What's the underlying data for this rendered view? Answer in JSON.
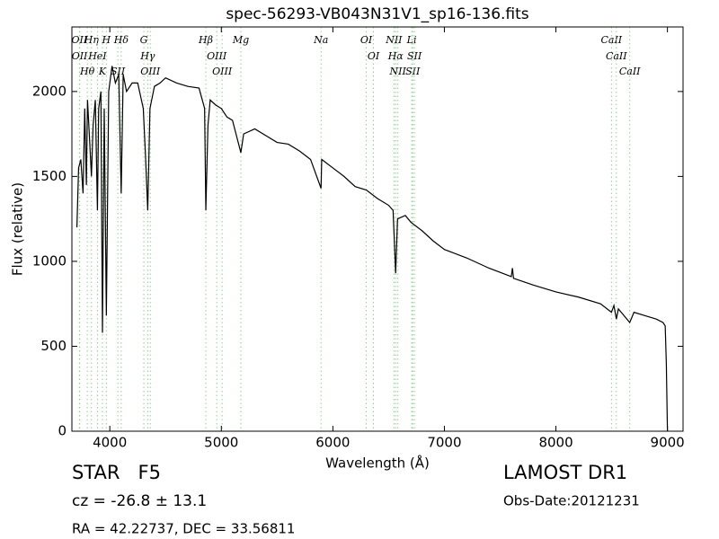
{
  "chart_data": {
    "type": "line",
    "title": "spec-56293-VB043N31V1_sp16-136.fits",
    "xlabel": "Wavelength (Å)",
    "ylabel": "Flux (relative)",
    "xlim": [
      3660,
      9140
    ],
    "ylim": [
      0,
      2380
    ],
    "xticks": [
      4000,
      5000,
      6000,
      7000,
      8000,
      9000
    ],
    "yticks": [
      0,
      500,
      1000,
      1500,
      2000
    ],
    "series": [
      {
        "color": "#000000",
        "x": [
          3705,
          3720,
          3740,
          3760,
          3775,
          3790,
          3800,
          3820,
          3835,
          3850,
          3870,
          3889,
          3900,
          3920,
          3934,
          3950,
          3969,
          3990,
          4020,
          4050,
          4080,
          4102,
          4120,
          4150,
          4200,
          4250,
          4300,
          4320,
          4340,
          4360,
          4400,
          4450,
          4500,
          4600,
          4700,
          4800,
          4850,
          4861,
          4880,
          4900,
          4950,
          5000,
          5050,
          5100,
          5175,
          5200,
          5300,
          5400,
          5500,
          5600,
          5700,
          5800,
          5894,
          5900,
          6000,
          6100,
          6200,
          6300,
          6400,
          6500,
          6540,
          6563,
          6580,
          6650,
          6700,
          6800,
          6900,
          7000,
          7200,
          7400,
          7600,
          7610,
          7620,
          7800,
          8000,
          8200,
          8400,
          8498,
          8520,
          8542,
          8560,
          8662,
          8700,
          8800,
          8900,
          8960,
          8980,
          8990,
          9000
        ],
        "values": [
          1200,
          1550,
          1600,
          1400,
          1900,
          1450,
          1950,
          1700,
          1500,
          1800,
          1950,
          1300,
          1900,
          2000,
          580,
          1900,
          680,
          2000,
          2150,
          2050,
          2100,
          1400,
          2100,
          2000,
          2050,
          2050,
          1900,
          1620,
          1300,
          1900,
          2030,
          2050,
          2080,
          2050,
          2030,
          2020,
          1900,
          1300,
          1800,
          1950,
          1920,
          1900,
          1850,
          1830,
          1640,
          1750,
          1780,
          1740,
          1700,
          1690,
          1650,
          1600,
          1430,
          1600,
          1550,
          1500,
          1440,
          1420,
          1370,
          1330,
          1300,
          930,
          1250,
          1270,
          1230,
          1180,
          1120,
          1070,
          1020,
          960,
          910,
          960,
          900,
          860,
          820,
          790,
          750,
          700,
          740,
          660,
          720,
          640,
          700,
          680,
          660,
          640,
          620,
          400,
          0
        ]
      }
    ],
    "lines": [
      {
        "label": "OII",
        "wavelength": 3727
      },
      {
        "label": "OII",
        "wavelength": 3729
      },
      {
        "label": "Hθ",
        "wavelength": 3798
      },
      {
        "label": "Hη",
        "wavelength": 3835
      },
      {
        "label": "HeI",
        "wavelength": 3889
      },
      {
        "label": "K",
        "wavelength": 3934
      },
      {
        "label": "H",
        "wavelength": 3969
      },
      {
        "label": "SII",
        "wavelength": 4072
      },
      {
        "label": "Hδ",
        "wavelength": 4102
      },
      {
        "label": "G",
        "wavelength": 4305
      },
      {
        "label": "Hγ",
        "wavelength": 4340
      },
      {
        "label": "OIII",
        "wavelength": 4363
      },
      {
        "label": "Hβ",
        "wavelength": 4861
      },
      {
        "label": "OIII",
        "wavelength": 4959
      },
      {
        "label": "OIII",
        "wavelength": 5007
      },
      {
        "label": "Mg",
        "wavelength": 5175
      },
      {
        "label": "Na",
        "wavelength": 5894
      },
      {
        "label": "OI",
        "wavelength": 6300
      },
      {
        "label": "OI",
        "wavelength": 6364
      },
      {
        "label": "NII",
        "wavelength": 6548
      },
      {
        "label": "Hα",
        "wavelength": 6563
      },
      {
        "label": "NII",
        "wavelength": 6583
      },
      {
        "label": "Li",
        "wavelength": 6707
      },
      {
        "label": "SII",
        "wavelength": 6716
      },
      {
        "label": "SII",
        "wavelength": 6731
      },
      {
        "label": "CaII",
        "wavelength": 8498
      },
      {
        "label": "CaII",
        "wavelength": 8542
      },
      {
        "label": "CaII",
        "wavelength": 8662
      }
    ],
    "line_color": "#8fd08f"
  },
  "footer": {
    "object": "STAR   F5",
    "redshift": "cz = -26.8 ± 13.1",
    "coords": "RA = 42.22737, DEC = 33.56811",
    "survey": "LAMOST DR1",
    "date": "Obs-Date:20121231"
  }
}
